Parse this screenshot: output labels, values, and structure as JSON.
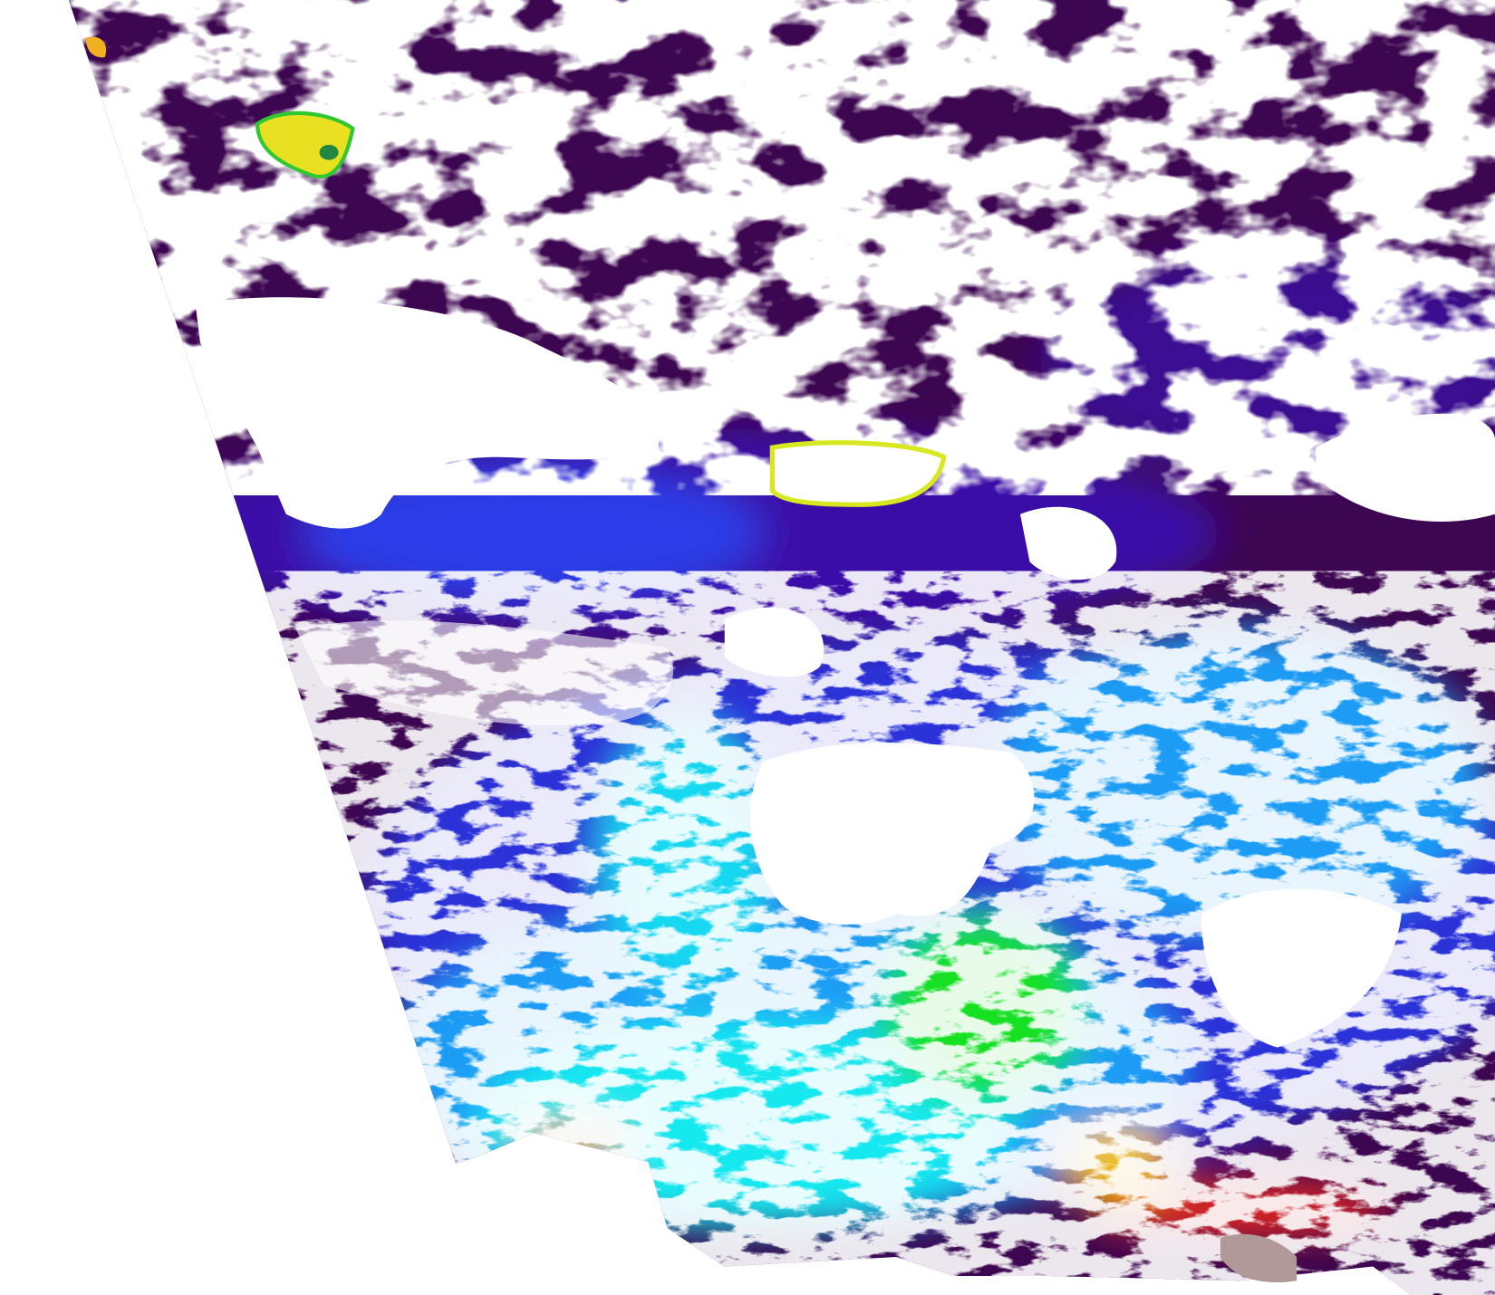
{
  "map": {
    "colors": {
      "background": "#ffffff",
      "deep_ocean": "#3d0650",
      "indigo": "#3a10a8",
      "blue": "#1e3cf0",
      "sky": "#1a9cf5",
      "cyan": "#18e8f0",
      "green": "#18e020",
      "yellow": "#f0e818",
      "orange": "#f09018",
      "red": "#e02820",
      "land_gray": "#b09898",
      "cloud": "#ffffff"
    }
  }
}
